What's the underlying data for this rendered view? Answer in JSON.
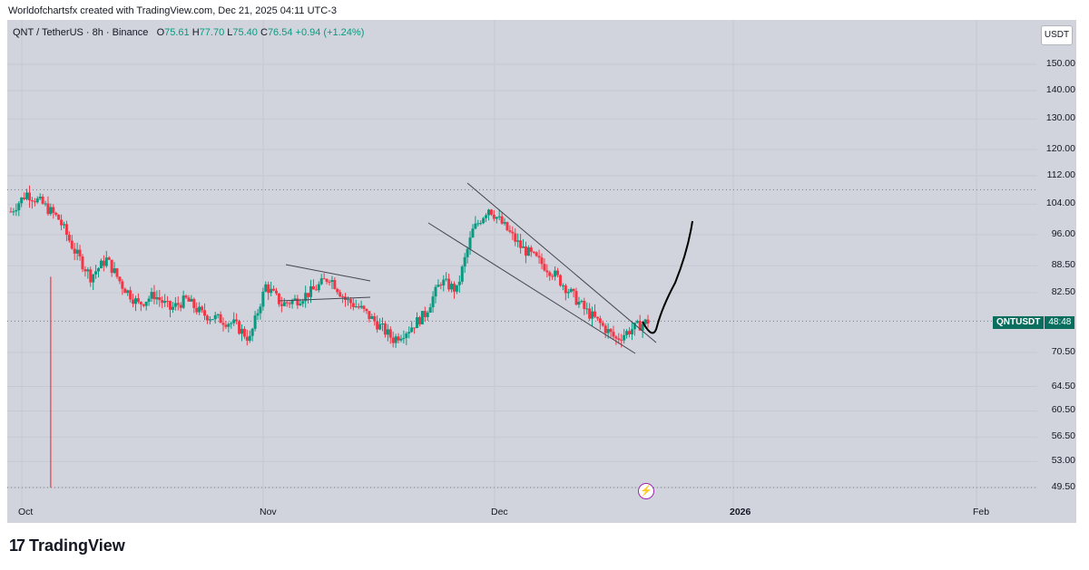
{
  "header": {
    "credit": "Worldofchartsfx created with TradingView.com, Dec 21, 2025 04:11 UTC-3"
  },
  "legend": {
    "symbol": "QNT / TetherUS · 8h · Binance",
    "o_label": "O",
    "o": "75.61",
    "h_label": "H",
    "h": "77.70",
    "l_label": "L",
    "l": "75.40",
    "c_label": "C",
    "c": "76.54",
    "change": "+0.94 (+1.24%)"
  },
  "currency_button": "USDT",
  "price_tag": {
    "symbol": "QNTUSDT",
    "value": "48:48"
  },
  "brand": {
    "name": "TradingView"
  },
  "colors": {
    "up": "#089981",
    "down": "#f23645",
    "background": "#d1d4dc",
    "accent": "#0a6e5f"
  },
  "chart_data": {
    "type": "candlestick",
    "title": "QNT / TetherUS · 8h · Binance",
    "y_scale": "log",
    "y_ticks": [
      "150.00",
      "140.00",
      "130.00",
      "120.00",
      "112.00",
      "104.00",
      "96.00",
      "88.50",
      "82.50",
      "70.50",
      "64.50",
      "60.50",
      "56.50",
      "53.00",
      "49.50"
    ],
    "x_ticks": [
      "Oct",
      "Nov",
      "Dec",
      "2026",
      "Feb"
    ],
    "close_path": [
      [
        "Oct",
        102
      ],
      [
        "",
        107
      ],
      [
        "",
        104
      ],
      [
        "",
        100
      ],
      [
        "",
        92
      ],
      [
        "",
        86
      ],
      [
        "",
        90
      ],
      [
        "",
        84
      ],
      [
        "",
        80
      ],
      [
        "",
        82
      ],
      [
        "",
        79
      ],
      [
        "",
        81
      ],
      [
        "",
        78
      ],
      [
        "",
        77
      ],
      [
        "",
        76
      ],
      [
        "Nov",
        73
      ],
      [
        "",
        84
      ],
      [
        "",
        80
      ],
      [
        "",
        81
      ],
      [
        "",
        83
      ],
      [
        "",
        86
      ],
      [
        "",
        81
      ],
      [
        "",
        79
      ],
      [
        "",
        76
      ],
      [
        "",
        73
      ],
      [
        "",
        75
      ],
      [
        "",
        78
      ],
      [
        "",
        85
      ],
      [
        "",
        83
      ],
      [
        "",
        97
      ],
      [
        "Dec",
        103
      ],
      [
        "",
        98
      ],
      [
        "",
        93
      ],
      [
        "",
        90
      ],
      [
        "",
        87
      ],
      [
        "",
        83
      ],
      [
        "",
        79
      ],
      [
        "",
        76
      ],
      [
        "",
        73
      ],
      [
        "",
        75
      ],
      [
        "",
        76.54
      ]
    ],
    "extremes": {
      "wick_low": 49.5,
      "wick_low_label": "Oct",
      "high": 108
    }
  }
}
